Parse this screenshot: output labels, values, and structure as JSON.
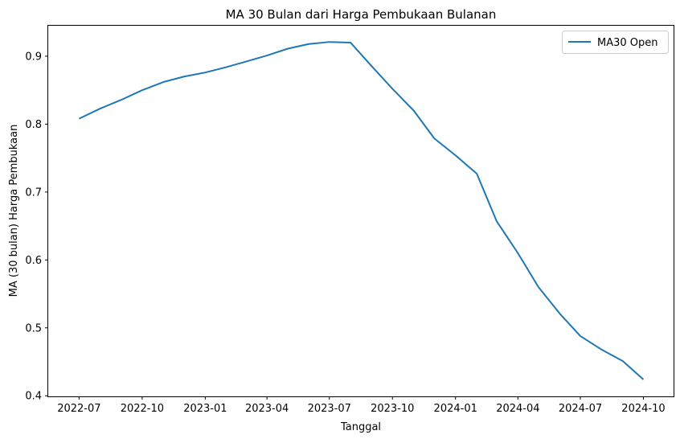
{
  "chart_data": {
    "type": "line",
    "title": "MA 30 Bulan dari Harga Pembukaan Bulanan",
    "xlabel": "Tanggal",
    "ylabel": "MA (30 bulan) Harga Pembukaan",
    "x": [
      "2022-07-01",
      "2022-08-01",
      "2022-09-01",
      "2022-10-01",
      "2022-11-01",
      "2022-12-01",
      "2023-01-01",
      "2023-02-01",
      "2023-03-01",
      "2023-04-01",
      "2023-05-01",
      "2023-06-01",
      "2023-07-01",
      "2023-08-01",
      "2023-09-01",
      "2023-10-01",
      "2023-11-01",
      "2023-12-01",
      "2024-01-01",
      "2024-02-01",
      "2024-03-01",
      "2024-04-01",
      "2024-05-01",
      "2024-06-01",
      "2024-07-01",
      "2024-08-01",
      "2024-09-01",
      "2024-10-01"
    ],
    "series": [
      {
        "name": "MA30 Open",
        "color": "#1f77b4",
        "values": [
          0.808,
          0.823,
          0.836,
          0.85,
          0.862,
          0.87,
          0.876,
          0.884,
          0.892,
          0.901,
          0.911,
          0.918,
          0.921,
          0.92,
          0.885,
          0.852,
          0.82,
          0.779,
          0.754,
          0.727,
          0.657,
          0.61,
          0.56,
          0.521,
          0.488,
          0.468,
          0.451,
          0.424
        ]
      }
    ],
    "xticks": [
      "2022-07",
      "2022-10",
      "2023-01",
      "2023-04",
      "2023-07",
      "2023-10",
      "2024-01",
      "2024-04",
      "2024-07",
      "2024-10"
    ],
    "yticks": [
      0.4,
      0.5,
      0.6,
      0.7,
      0.8,
      0.9
    ],
    "xlim": [
      "2022-05-17",
      "2024-11-14"
    ],
    "ylim": [
      0.3991,
      0.9449
    ],
    "grid": false,
    "legend_position": "top-right"
  }
}
